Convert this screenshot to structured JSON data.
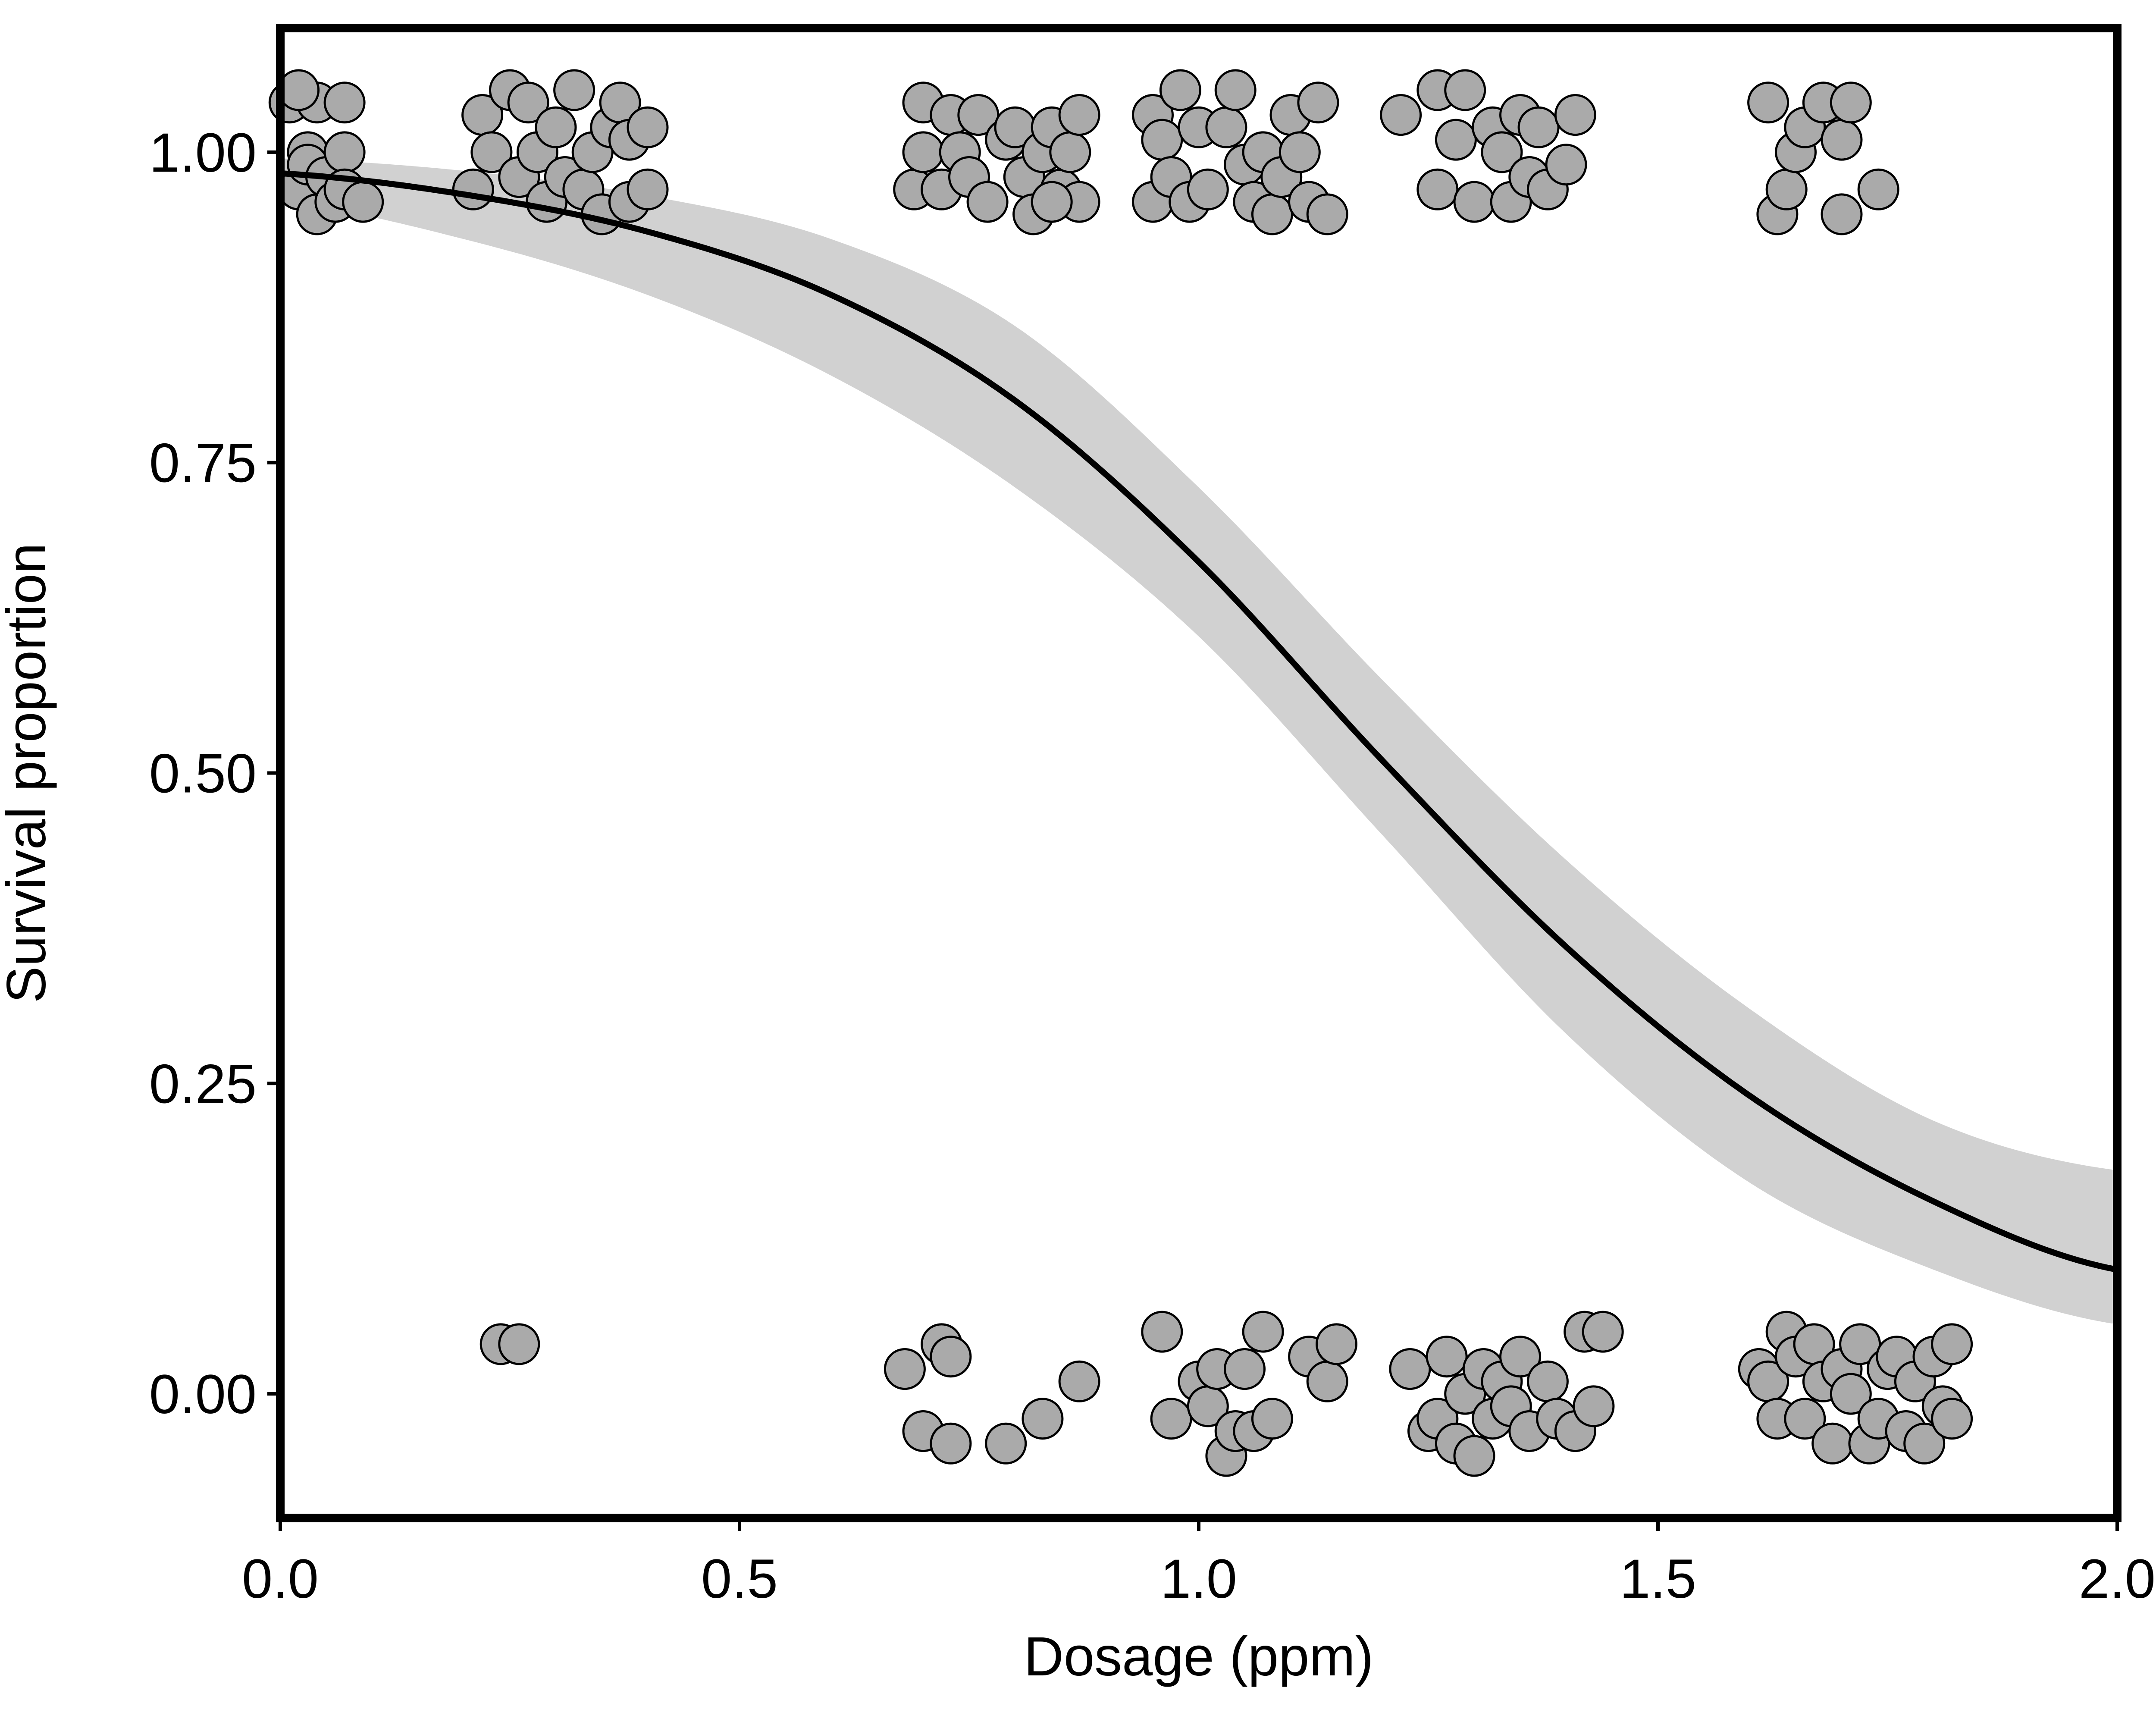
{
  "chart_data": {
    "type": "scatter",
    "xlabel": "Dosage (ppm)",
    "ylabel": "Survival proportion",
    "xlim": [
      0,
      2
    ],
    "ylim": [
      -0.1,
      1.1
    ],
    "x_ticks": [
      "0.0",
      "0.5",
      "1.0",
      "1.5",
      "2.0"
    ],
    "y_ticks": [
      "0.00",
      "0.25",
      "0.50",
      "0.75",
      "1.00"
    ],
    "grid": false,
    "legend": "none",
    "colors": {
      "points": "#aaaaaa",
      "point_edge": "#000000",
      "curve": "#000000",
      "band": "#d1d1d1",
      "frame": "#000000"
    },
    "fit_curve": {
      "x": [
        0.0,
        0.2,
        0.4,
        0.6,
        0.8,
        1.0,
        1.2,
        1.4,
        1.6,
        1.8,
        2.0
      ],
      "y": [
        0.983,
        0.966,
        0.936,
        0.885,
        0.8,
        0.67,
        0.51,
        0.36,
        0.24,
        0.155,
        0.1
      ],
      "lower": [
        0.96,
        0.93,
        0.885,
        0.82,
        0.73,
        0.61,
        0.45,
        0.29,
        0.17,
        0.1,
        0.056
      ],
      "upper": [
        0.995,
        0.985,
        0.965,
        0.93,
        0.86,
        0.73,
        0.575,
        0.43,
        0.31,
        0.22,
        0.18
      ]
    },
    "points": [
      {
        "x": 0.01,
        "y": 1.04
      },
      {
        "x": 0.02,
        "y": 0.97
      },
      {
        "x": 0.03,
        "y": 1.0
      },
      {
        "x": 0.03,
        "y": 0.99
      },
      {
        "x": 0.04,
        "y": 0.95
      },
      {
        "x": 0.05,
        "y": 0.98
      },
      {
        "x": 0.06,
        "y": 0.96
      },
      {
        "x": 0.07,
        "y": 1.0
      },
      {
        "x": 0.07,
        "y": 0.97
      },
      {
        "x": 0.09,
        "y": 0.96
      },
      {
        "x": 0.04,
        "y": 1.04
      },
      {
        "x": 0.07,
        "y": 1.04
      },
      {
        "x": 0.02,
        "y": 1.05
      },
      {
        "x": 0.21,
        "y": 0.97
      },
      {
        "x": 0.22,
        "y": 1.03
      },
      {
        "x": 0.23,
        "y": 1.0
      },
      {
        "x": 0.25,
        "y": 1.05
      },
      {
        "x": 0.26,
        "y": 0.98
      },
      {
        "x": 0.27,
        "y": 1.04
      },
      {
        "x": 0.28,
        "y": 1.0
      },
      {
        "x": 0.29,
        "y": 0.96
      },
      {
        "x": 0.3,
        "y": 1.02
      },
      {
        "x": 0.31,
        "y": 0.98
      },
      {
        "x": 0.32,
        "y": 1.05
      },
      {
        "x": 0.33,
        "y": 0.97
      },
      {
        "x": 0.34,
        "y": 1.0
      },
      {
        "x": 0.35,
        "y": 0.95
      },
      {
        "x": 0.36,
        "y": 1.02
      },
      {
        "x": 0.37,
        "y": 1.04
      },
      {
        "x": 0.38,
        "y": 0.96
      },
      {
        "x": 0.38,
        "y": 1.01
      },
      {
        "x": 0.4,
        "y": 0.97
      },
      {
        "x": 0.4,
        "y": 1.02
      },
      {
        "x": 0.24,
        "y": 0.04
      },
      {
        "x": 0.26,
        "y": 0.04
      },
      {
        "x": 0.69,
        "y": 0.97
      },
      {
        "x": 0.7,
        "y": 1.0
      },
      {
        "x": 0.7,
        "y": 1.04
      },
      {
        "x": 0.72,
        "y": 0.97
      },
      {
        "x": 0.73,
        "y": 1.03
      },
      {
        "x": 0.74,
        "y": 1.0
      },
      {
        "x": 0.75,
        "y": 0.98
      },
      {
        "x": 0.76,
        "y": 1.03
      },
      {
        "x": 0.77,
        "y": 0.96
      },
      {
        "x": 0.79,
        "y": 1.01
      },
      {
        "x": 0.8,
        "y": 1.02
      },
      {
        "x": 0.81,
        "y": 0.98
      },
      {
        "x": 0.82,
        "y": 0.95
      },
      {
        "x": 0.83,
        "y": 1.0
      },
      {
        "x": 0.84,
        "y": 1.02
      },
      {
        "x": 0.85,
        "y": 0.97
      },
      {
        "x": 0.86,
        "y": 1.0
      },
      {
        "x": 0.87,
        "y": 0.96
      },
      {
        "x": 0.87,
        "y": 1.03
      },
      {
        "x": 0.84,
        "y": 0.96
      },
      {
        "x": 0.95,
        "y": 1.03
      },
      {
        "x": 0.95,
        "y": 0.96
      },
      {
        "x": 0.96,
        "y": 1.01
      },
      {
        "x": 0.97,
        "y": 0.98
      },
      {
        "x": 0.98,
        "y": 1.05
      },
      {
        "x": 0.99,
        "y": 0.96
      },
      {
        "x": 1.0,
        "y": 1.02
      },
      {
        "x": 1.01,
        "y": 0.97
      },
      {
        "x": 1.03,
        "y": 1.02
      },
      {
        "x": 1.04,
        "y": 1.05
      },
      {
        "x": 1.05,
        "y": 0.99
      },
      {
        "x": 1.06,
        "y": 0.96
      },
      {
        "x": 1.07,
        "y": 1.0
      },
      {
        "x": 1.08,
        "y": 0.95
      },
      {
        "x": 1.09,
        "y": 0.98
      },
      {
        "x": 1.1,
        "y": 1.03
      },
      {
        "x": 1.11,
        "y": 1.0
      },
      {
        "x": 1.12,
        "y": 0.96
      },
      {
        "x": 1.13,
        "y": 1.04
      },
      {
        "x": 1.14,
        "y": 0.95
      },
      {
        "x": 1.22,
        "y": 1.03
      },
      {
        "x": 1.26,
        "y": 1.05
      },
      {
        "x": 1.26,
        "y": 0.97
      },
      {
        "x": 1.28,
        "y": 1.01
      },
      {
        "x": 1.29,
        "y": 1.05
      },
      {
        "x": 1.3,
        "y": 0.96
      },
      {
        "x": 1.32,
        "y": 1.02
      },
      {
        "x": 1.33,
        "y": 1.0
      },
      {
        "x": 1.34,
        "y": 0.96
      },
      {
        "x": 1.35,
        "y": 1.03
      },
      {
        "x": 1.36,
        "y": 0.98
      },
      {
        "x": 1.37,
        "y": 1.02
      },
      {
        "x": 1.38,
        "y": 0.97
      },
      {
        "x": 1.4,
        "y": 0.99
      },
      {
        "x": 1.41,
        "y": 1.03
      },
      {
        "x": 1.62,
        "y": 1.04
      },
      {
        "x": 1.63,
        "y": 0.95
      },
      {
        "x": 1.64,
        "y": 0.97
      },
      {
        "x": 1.65,
        "y": 1.0
      },
      {
        "x": 1.66,
        "y": 1.02
      },
      {
        "x": 1.68,
        "y": 1.04
      },
      {
        "x": 1.7,
        "y": 1.01
      },
      {
        "x": 1.7,
        "y": 0.95
      },
      {
        "x": 1.71,
        "y": 1.04
      },
      {
        "x": 1.74,
        "y": 0.97
      },
      {
        "x": 0.68,
        "y": 0.02
      },
      {
        "x": 0.7,
        "y": -0.03
      },
      {
        "x": 0.72,
        "y": 0.04
      },
      {
        "x": 0.73,
        "y": 0.03
      },
      {
        "x": 0.73,
        "y": -0.04
      },
      {
        "x": 0.79,
        "y": -0.04
      },
      {
        "x": 0.83,
        "y": -0.02
      },
      {
        "x": 0.87,
        "y": 0.01
      },
      {
        "x": 0.96,
        "y": 0.05
      },
      {
        "x": 0.97,
        "y": -0.02
      },
      {
        "x": 1.0,
        "y": 0.01
      },
      {
        "x": 1.01,
        "y": -0.01
      },
      {
        "x": 1.02,
        "y": 0.02
      },
      {
        "x": 1.03,
        "y": -0.05
      },
      {
        "x": 1.04,
        "y": -0.03
      },
      {
        "x": 1.05,
        "y": 0.02
      },
      {
        "x": 1.06,
        "y": -0.03
      },
      {
        "x": 1.07,
        "y": 0.05
      },
      {
        "x": 1.08,
        "y": -0.02
      },
      {
        "x": 1.12,
        "y": 0.03
      },
      {
        "x": 1.14,
        "y": 0.01
      },
      {
        "x": 1.15,
        "y": 0.04
      },
      {
        "x": 1.23,
        "y": 0.02
      },
      {
        "x": 1.25,
        "y": -0.03
      },
      {
        "x": 1.26,
        "y": -0.02
      },
      {
        "x": 1.27,
        "y": 0.03
      },
      {
        "x": 1.28,
        "y": -0.04
      },
      {
        "x": 1.29,
        "y": 0.0
      },
      {
        "x": 1.3,
        "y": -0.05
      },
      {
        "x": 1.31,
        "y": 0.02
      },
      {
        "x": 1.32,
        "y": -0.02
      },
      {
        "x": 1.33,
        "y": 0.01
      },
      {
        "x": 1.34,
        "y": -0.01
      },
      {
        "x": 1.35,
        "y": 0.03
      },
      {
        "x": 1.36,
        "y": -0.03
      },
      {
        "x": 1.38,
        "y": 0.01
      },
      {
        "x": 1.39,
        "y": -0.02
      },
      {
        "x": 1.41,
        "y": -0.03
      },
      {
        "x": 1.42,
        "y": 0.05
      },
      {
        "x": 1.43,
        "y": -0.01
      },
      {
        "x": 1.44,
        "y": 0.05
      },
      {
        "x": 1.61,
        "y": 0.02
      },
      {
        "x": 1.62,
        "y": 0.01
      },
      {
        "x": 1.63,
        "y": -0.02
      },
      {
        "x": 1.64,
        "y": 0.05
      },
      {
        "x": 1.65,
        "y": 0.03
      },
      {
        "x": 1.66,
        "y": -0.02
      },
      {
        "x": 1.67,
        "y": 0.04
      },
      {
        "x": 1.68,
        "y": 0.01
      },
      {
        "x": 1.69,
        "y": -0.04
      },
      {
        "x": 1.7,
        "y": 0.02
      },
      {
        "x": 1.71,
        "y": 0.0
      },
      {
        "x": 1.72,
        "y": 0.04
      },
      {
        "x": 1.73,
        "y": -0.04
      },
      {
        "x": 1.74,
        "y": -0.02
      },
      {
        "x": 1.75,
        "y": 0.02
      },
      {
        "x": 1.76,
        "y": 0.03
      },
      {
        "x": 1.77,
        "y": -0.03
      },
      {
        "x": 1.78,
        "y": 0.01
      },
      {
        "x": 1.79,
        "y": -0.04
      },
      {
        "x": 1.8,
        "y": 0.03
      },
      {
        "x": 1.81,
        "y": -0.01
      },
      {
        "x": 1.82,
        "y": 0.04
      },
      {
        "x": 1.82,
        "y": -0.02
      }
    ]
  }
}
